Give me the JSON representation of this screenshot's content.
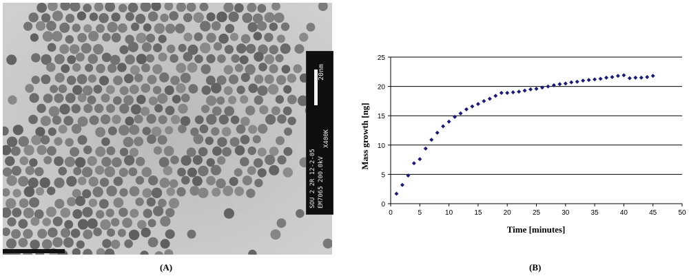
{
  "panel_a": {
    "caption": "(A)",
    "scalebar_label": "20nm",
    "info_line1": "SOU 2 2R 12-2-05",
    "info_line2": "EM7065 200.0kV",
    "magnification": "X400K"
  },
  "panel_b": {
    "caption": "(B)"
  },
  "chart_data": {
    "type": "scatter",
    "xlabel": "Time [minutes]",
    "ylabel": "Mass growth [ng]",
    "xlim": [
      0,
      50
    ],
    "ylim": [
      0,
      25
    ],
    "x_ticks": [
      0,
      5,
      10,
      15,
      20,
      25,
      30,
      35,
      40,
      45,
      50
    ],
    "y_ticks": [
      0,
      5,
      10,
      15,
      20,
      25
    ],
    "grid": "horizontal",
    "marker_color": "#1a1a7a",
    "series": [
      {
        "x": [
          1,
          2,
          3,
          4,
          5,
          6,
          7,
          8,
          9,
          10,
          11,
          12,
          13,
          14,
          15,
          16,
          17,
          18,
          19,
          20,
          21,
          22,
          23,
          24,
          25,
          26,
          27,
          28,
          29,
          30,
          31,
          32,
          33,
          34,
          35,
          36,
          37,
          38,
          39,
          40,
          41,
          42,
          43,
          44,
          45
        ],
        "y": [
          1.7,
          3.2,
          4.8,
          6.9,
          7.6,
          9.4,
          10.9,
          12.1,
          13.2,
          14.0,
          14.8,
          15.4,
          16.1,
          16.6,
          17.0,
          17.5,
          17.9,
          18.4,
          18.9,
          18.9,
          19.0,
          19.1,
          19.3,
          19.5,
          19.6,
          19.8,
          20.0,
          20.2,
          20.4,
          20.5,
          20.7,
          20.8,
          21.0,
          21.1,
          21.2,
          21.3,
          21.5,
          21.6,
          21.8,
          21.9,
          21.4,
          21.5,
          21.5,
          21.6,
          21.8
        ]
      }
    ]
  }
}
